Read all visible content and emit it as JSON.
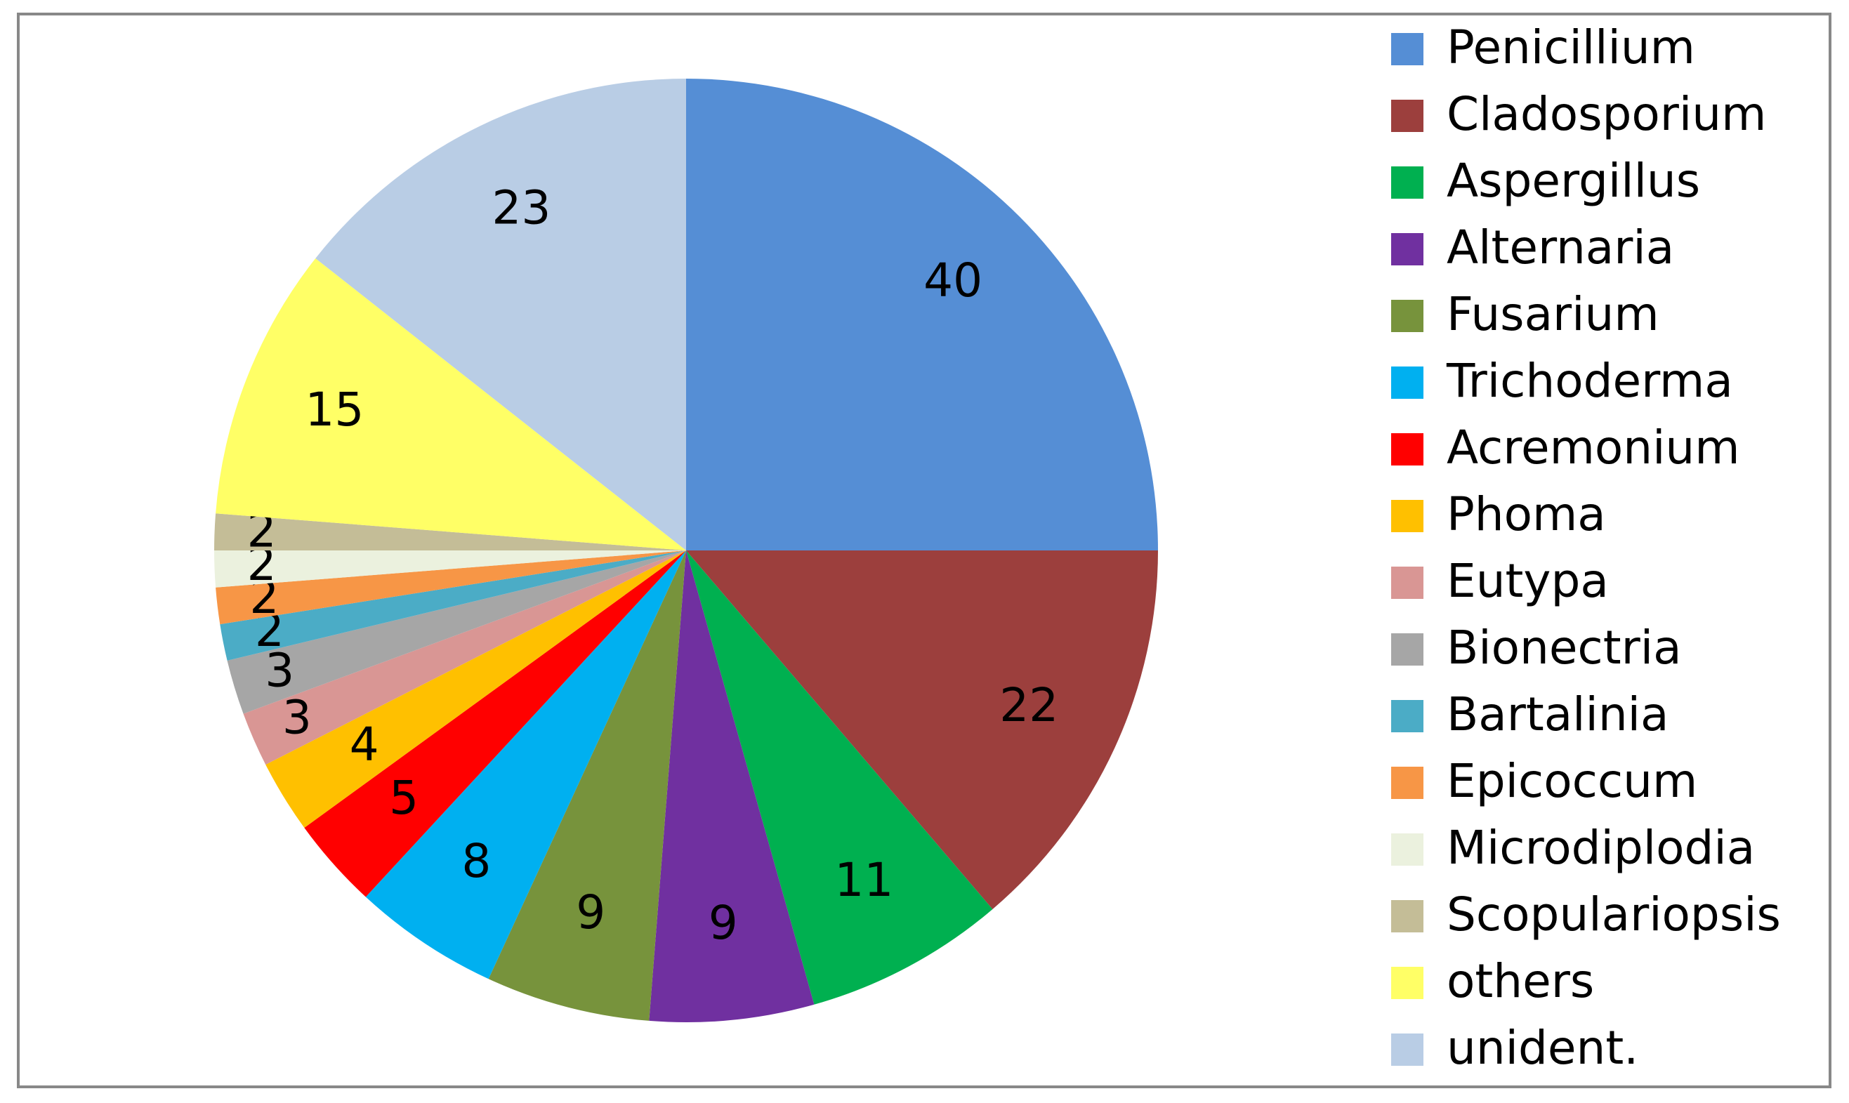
{
  "chart_data": {
    "type": "pie",
    "categories": [
      "Penicillium",
      "Cladosporium",
      "Aspergillus",
      "Alternaria",
      "Fusarium",
      "Trichoderma",
      "Acremonium",
      "Phoma",
      "Eutypa",
      "Bionectria",
      "Bartalinia",
      "Epicoccum",
      "Microdiplodia",
      "Scopulariopsis",
      "others",
      "unident."
    ],
    "values": [
      40,
      22,
      11,
      9,
      9,
      8,
      5,
      4,
      3,
      3,
      2,
      2,
      2,
      2,
      15,
      23
    ],
    "colors": [
      "#558ed5",
      "#9c3f3d",
      "#00b050",
      "#7030a0",
      "#77933c",
      "#00b0f0",
      "#ff0000",
      "#ffc000",
      "#d99694",
      "#a6a6a6",
      "#4bacc6",
      "#f79646",
      "#ebf1de",
      "#c4bd97",
      "#ffff66",
      "#b9cde5"
    ],
    "legend": "right"
  }
}
